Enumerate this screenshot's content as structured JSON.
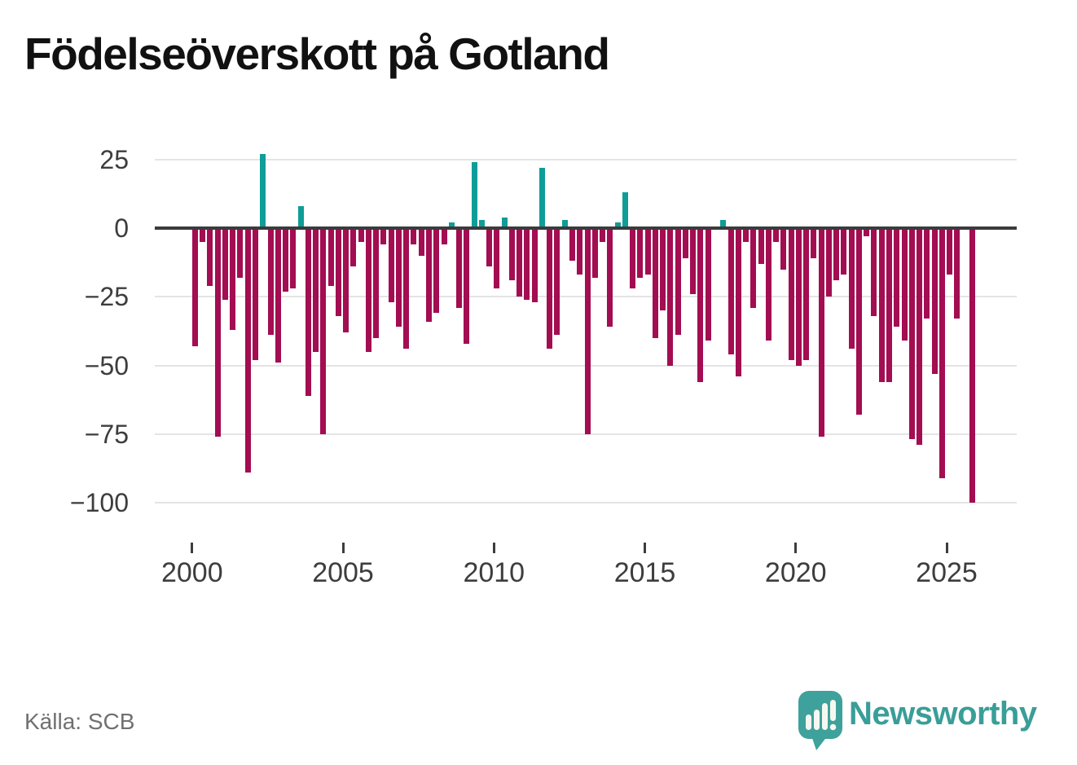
{
  "title": "Födelseöverskott på Gotland",
  "source": "Källa: SCB",
  "branding": {
    "name": "Newsworthy"
  },
  "colors": {
    "negative_bar": "#a30d52",
    "positive_bar": "#0f9d98",
    "axis": "#3b3b3b",
    "gridline": "#e4e4e4",
    "tick_text": "#3d3d3d",
    "title_text": "#111111",
    "source_text": "#707070",
    "brand_teal": "#3a9e98"
  },
  "chart_data": {
    "type": "bar",
    "title": "Födelseöverskott på Gotland",
    "x_start": "2000-Q1",
    "x_frequency": "quarterly",
    "categories": [
      "2000Q1",
      "2000Q2",
      "2000Q3",
      "2000Q4",
      "2001Q1",
      "2001Q2",
      "2001Q3",
      "2001Q4",
      "2002Q1",
      "2002Q2",
      "2002Q3",
      "2002Q4",
      "2003Q1",
      "2003Q2",
      "2003Q3",
      "2003Q4",
      "2004Q1",
      "2004Q2",
      "2004Q3",
      "2004Q4",
      "2005Q1",
      "2005Q2",
      "2005Q3",
      "2005Q4",
      "2006Q1",
      "2006Q2",
      "2006Q3",
      "2006Q4",
      "2007Q1",
      "2007Q2",
      "2007Q3",
      "2007Q4",
      "2008Q1",
      "2008Q2",
      "2008Q3",
      "2008Q4",
      "2009Q1",
      "2009Q2",
      "2009Q3",
      "2009Q4",
      "2010Q1",
      "2010Q2",
      "2010Q3",
      "2010Q4",
      "2011Q1",
      "2011Q2",
      "2011Q3",
      "2011Q4",
      "2012Q1",
      "2012Q2",
      "2012Q3",
      "2012Q4",
      "2013Q1",
      "2013Q2",
      "2013Q3",
      "2013Q4",
      "2014Q1",
      "2014Q2",
      "2014Q3",
      "2014Q4",
      "2015Q1",
      "2015Q2",
      "2015Q3",
      "2015Q4",
      "2016Q1",
      "2016Q2",
      "2016Q3",
      "2016Q4",
      "2017Q1",
      "2017Q2",
      "2017Q3",
      "2017Q4",
      "2018Q1",
      "2018Q2",
      "2018Q3",
      "2018Q4",
      "2019Q1",
      "2019Q2",
      "2019Q3",
      "2019Q4",
      "2020Q1",
      "2020Q2",
      "2020Q3",
      "2020Q4",
      "2021Q1",
      "2021Q2",
      "2021Q3",
      "2021Q4",
      "2022Q1",
      "2022Q2",
      "2022Q3",
      "2022Q4",
      "2023Q1",
      "2023Q2",
      "2023Q3",
      "2023Q4",
      "2024Q1",
      "2024Q2",
      "2024Q3",
      "2024Q4",
      "2025Q1",
      "2025Q2",
      "2025Q3",
      "2025Q4"
    ],
    "values": [
      -43,
      -5,
      -21,
      -76,
      -26,
      -37,
      -18,
      -89,
      -48,
      27,
      -39,
      -49,
      -23,
      -22,
      8,
      -61,
      -45,
      -75,
      -21,
      -32,
      -38,
      -14,
      -5,
      -45,
      -40,
      -6,
      -27,
      -36,
      -44,
      -6,
      -10,
      -34,
      -31,
      -6,
      2,
      -29,
      -42,
      24,
      3,
      -14,
      -22,
      4,
      -19,
      -25,
      -26,
      -27,
      22,
      -44,
      -39,
      3,
      -12,
      -17,
      -75,
      -18,
      -5,
      -36,
      2,
      13,
      -22,
      -18,
      -17,
      -40,
      -30,
      -50,
      -39,
      -11,
      -24,
      -56,
      -41,
      0,
      3,
      -46,
      -54,
      -5,
      -29,
      -13,
      -41,
      -5,
      -15,
      -48,
      -50,
      -48,
      -11,
      -76,
      -25,
      -19,
      -17,
      -44,
      -68,
      -3,
      -32,
      -56,
      -56,
      -36,
      -41,
      -77,
      -79,
      -33,
      -53,
      -91,
      -17,
      -33,
      0,
      -100
    ],
    "y_ticks": [
      {
        "value": 25,
        "label": "25"
      },
      {
        "value": 0,
        "label": "0"
      },
      {
        "value": -25,
        "label": "−25"
      },
      {
        "value": -50,
        "label": "−50"
      },
      {
        "value": -75,
        "label": "−75"
      },
      {
        "value": -100,
        "label": "−100"
      }
    ],
    "x_ticks": [
      {
        "year": 2000,
        "label": "2000"
      },
      {
        "year": 2005,
        "label": "2005"
      },
      {
        "year": 2010,
        "label": "2010"
      },
      {
        "year": 2015,
        "label": "2015"
      },
      {
        "year": 2020,
        "label": "2020"
      },
      {
        "year": 2025,
        "label": "2025"
      }
    ],
    "ylim": [
      -110,
      30
    ],
    "grid": true,
    "legend": "none"
  }
}
